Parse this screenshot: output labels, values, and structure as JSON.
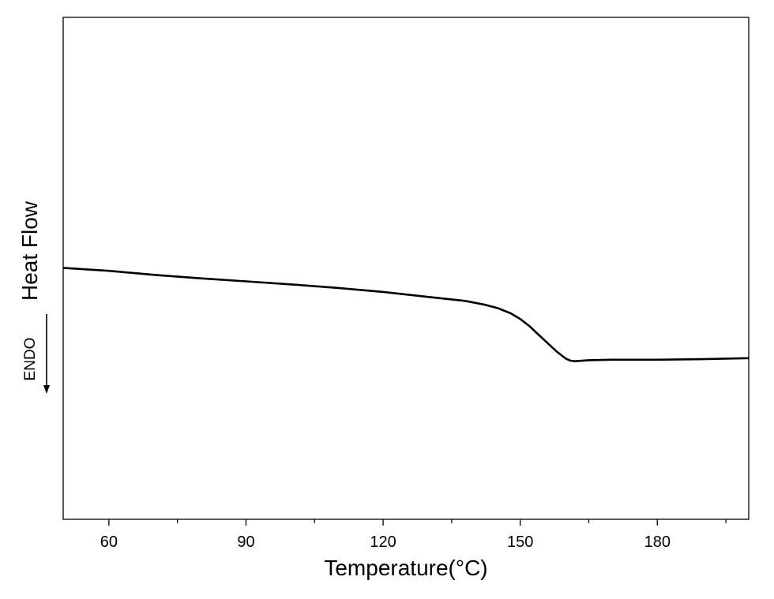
{
  "chart_data": {
    "type": "line",
    "xlabel": "Temperature(°C)",
    "ylabel": "Heat Flow",
    "direction_label": "ENDO",
    "x_ticks": [
      60,
      90,
      120,
      150,
      180
    ],
    "x_minor_ticks": [
      75,
      105,
      135,
      165,
      195
    ],
    "xlim": [
      50,
      200
    ],
    "ylim": [
      0,
      1
    ],
    "y_ticks_shown": false,
    "grid": false,
    "series": [
      {
        "color": "#000000",
        "x": [
          50,
          60,
          70,
          80,
          90,
          100,
          110,
          120,
          130,
          138,
          142,
          145,
          148,
          150,
          152,
          154,
          156,
          158,
          160,
          161,
          162,
          165,
          170,
          180,
          190,
          200
        ],
        "y": [
          0.501,
          0.495,
          0.487,
          0.48,
          0.474,
          0.468,
          0.461,
          0.453,
          0.443,
          0.435,
          0.428,
          0.421,
          0.41,
          0.399,
          0.385,
          0.368,
          0.351,
          0.334,
          0.32,
          0.316,
          0.315,
          0.317,
          0.318,
          0.318,
          0.319,
          0.321
        ]
      }
    ]
  }
}
